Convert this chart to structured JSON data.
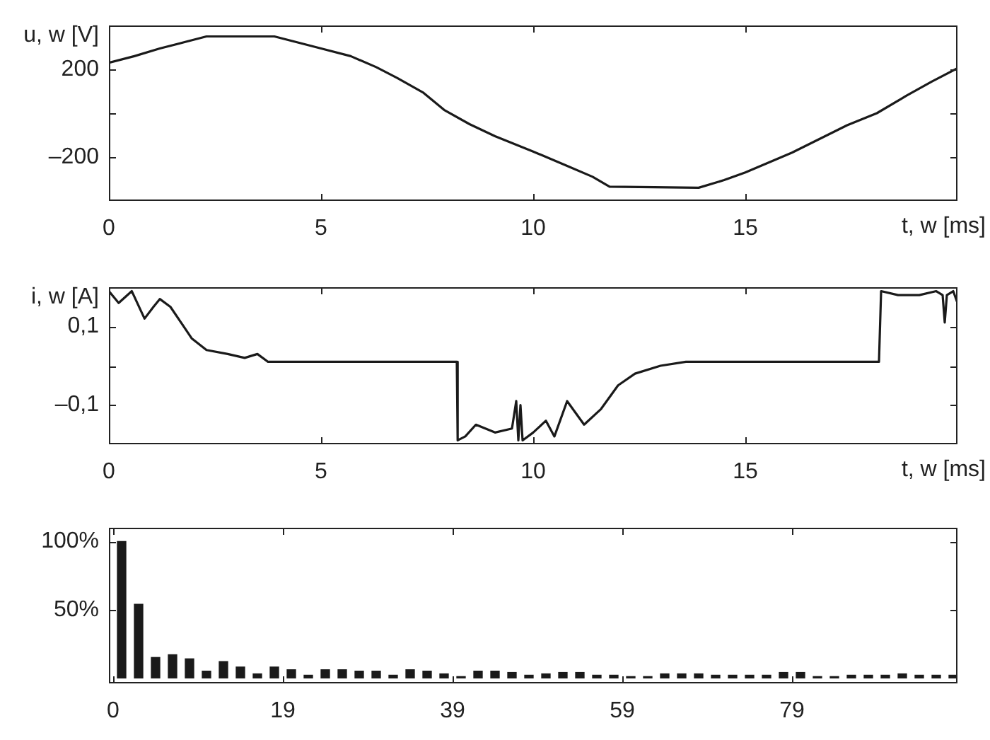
{
  "chart_data": [
    {
      "type": "line",
      "xlabel": "t, w [ms]",
      "ylabel": "u, w [V]",
      "color": "#1a1a1a",
      "marker": "none",
      "x": [
        0,
        0.6,
        1.2,
        1.8,
        2.3,
        3.9,
        4.5,
        5,
        5.7,
        6.3,
        6.8,
        7.4,
        7.9,
        8.5,
        9.1,
        10,
        10.8,
        11.4,
        11.8,
        13.9,
        14.5,
        15,
        16.1,
        17.4,
        18.1,
        18.8,
        19.4,
        20
      ],
      "values": [
        230,
        260,
        295,
        325,
        350,
        350,
        320,
        295,
        260,
        210,
        160,
        95,
        15,
        -50,
        -105,
        -175,
        -240,
        -290,
        -335,
        -340,
        -305,
        -270,
        -180,
        -55,
        0,
        80,
        145,
        205
      ],
      "xlim": [
        0,
        20
      ],
      "xticks": [
        0,
        5,
        10,
        15
      ],
      "ylim": [
        -400,
        400
      ],
      "yticks": [
        {
          "value": -200,
          "label": "–200"
        },
        {
          "value": 0,
          "label": null
        },
        200
      ]
    },
    {
      "type": "line",
      "xlabel": "t, w [ms]",
      "ylabel": "i, w [A]",
      "color": "#1a1a1a",
      "marker": "none",
      "x": [
        0,
        0.23,
        0.54,
        0.84,
        1.05,
        1.2,
        1.45,
        1.7,
        1.95,
        2.3,
        2.8,
        3.2,
        3.5,
        3.75,
        8.2,
        8.22,
        8.4,
        8.65,
        9.1,
        9.5,
        9.6,
        9.65,
        9.7,
        9.75,
        10,
        10.3,
        10.5,
        10.8,
        11.2,
        11.6,
        12,
        12.4,
        13,
        13.6,
        18.15,
        18.2,
        18.6,
        19.1,
        19.5,
        19.65,
        19.7,
        19.75,
        19.9,
        20
      ],
      "values": [
        0.19,
        0.16,
        0.19,
        0.12,
        0.15,
        0.17,
        0.15,
        0.11,
        0.07,
        0.04,
        0.03,
        0.02,
        0.03,
        0.01,
        0.01,
        -0.19,
        -0.18,
        -0.15,
        -0.17,
        -0.16,
        -0.09,
        -0.19,
        -0.1,
        -0.19,
        -0.17,
        -0.14,
        -0.18,
        -0.09,
        -0.15,
        -0.11,
        -0.05,
        -0.02,
        0,
        0.01,
        0.01,
        0.19,
        0.18,
        0.18,
        0.19,
        0.18,
        0.11,
        0.18,
        0.19,
        0.16
      ],
      "xlim": [
        0,
        20
      ],
      "xticks": [
        0,
        5,
        10,
        15
      ],
      "ylim": [
        -0.2,
        0.2
      ],
      "yticks": [
        {
          "value": -0.1,
          "label": "–0,1"
        },
        {
          "value": 0,
          "label": null
        },
        {
          "value": 0.1,
          "label": "0,1"
        }
      ]
    },
    {
      "type": "bar",
      "color": "#1a1a1a",
      "categories": [
        "0",
        null,
        null,
        null,
        null,
        null,
        null,
        null,
        null,
        null,
        null,
        null,
        null,
        null,
        null,
        null,
        null,
        null,
        null,
        null,
        "19",
        null,
        null,
        null,
        null,
        null,
        null,
        null,
        null,
        null,
        null,
        null,
        null,
        null,
        null,
        null,
        null,
        null,
        null,
        null,
        "39",
        null,
        null,
        null,
        null,
        null,
        null,
        null,
        null,
        null,
        null,
        null,
        null,
        null,
        null,
        null,
        null,
        null,
        null,
        null,
        "59",
        null,
        null,
        null,
        null,
        null,
        null,
        null,
        null,
        null,
        null,
        null,
        null,
        null,
        null,
        null,
        null,
        null,
        null,
        null,
        "79",
        null,
        null,
        null,
        null,
        null,
        null,
        null,
        null,
        null,
        null,
        null,
        null,
        null,
        null,
        null,
        null,
        null,
        null,
        null
      ],
      "values": [
        null,
        100,
        null,
        54,
        null,
        15,
        null,
        17,
        null,
        14,
        null,
        5,
        null,
        12,
        null,
        8,
        null,
        3,
        null,
        8,
        null,
        6,
        null,
        2,
        null,
        6,
        null,
        6,
        null,
        5,
        null,
        5,
        null,
        2,
        null,
        6,
        null,
        5,
        null,
        3,
        null,
        1,
        null,
        5,
        null,
        5,
        null,
        4,
        null,
        2,
        null,
        3,
        null,
        4,
        null,
        4,
        null,
        2,
        null,
        2,
        null,
        1,
        null,
        1,
        null,
        3,
        null,
        3,
        null,
        3,
        null,
        2,
        null,
        2,
        null,
        2,
        null,
        2,
        null,
        4,
        null,
        4,
        null,
        1,
        null,
        1,
        null,
        2,
        null,
        2,
        null,
        2,
        null,
        3,
        null,
        2,
        null,
        2,
        null,
        2
      ],
      "ylim": [
        -4,
        110
      ],
      "yticks": [
        {
          "value": 50,
          "label": "50%"
        },
        {
          "value": 100,
          "label": "100%"
        }
      ]
    }
  ]
}
